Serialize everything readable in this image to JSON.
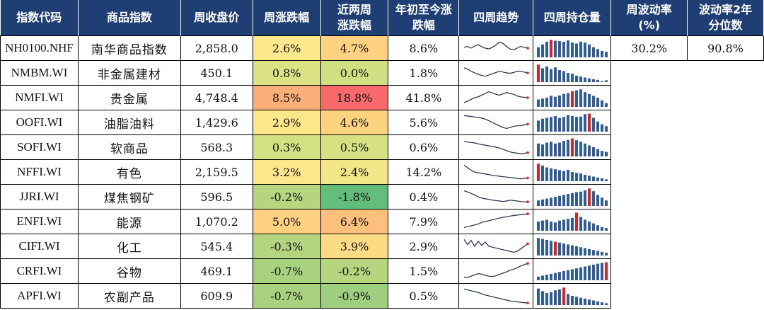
{
  "headers": [
    "指数代码",
    "商品指数",
    "周收盘价",
    "周涨跌幅",
    "近两周\n涨跌幅",
    "年初至今涨\n跌幅",
    "四周趋势",
    "四周持仓量",
    "周波动率\n(%)",
    "波动率2年\n分位数"
  ],
  "colors": {
    "header_bg": "#1f3e73",
    "spark_line": "#1f2a44",
    "spark_end": "#e02020",
    "bar_normal": "#2e5c9e",
    "bar_highlight": "#e02020"
  },
  "rows": [
    {
      "code": "NH0100.NHF",
      "name": "南华商品指数",
      "close": "2,858.0",
      "wk": "2.6%",
      "wk_bg": "#fde98c",
      "two": "4.7%",
      "two_bg": "#fed280",
      "ytd": "8.6%",
      "vol": "30.2%",
      "pct": "90.8%",
      "trend": [
        0.55,
        0.6,
        0.5,
        0.62,
        0.7,
        0.58,
        0.5,
        0.45,
        0.55,
        0.68,
        0.85,
        0.78,
        0.6,
        0.45,
        0.4,
        0.5,
        0.6,
        0.55,
        0.5
      ],
      "oi": [
        0.55,
        0.7,
        0.85,
        0.95,
        0.9,
        0.88,
        0.85,
        0.92,
        0.8,
        0.75,
        0.85,
        0.8,
        0.7,
        0.55,
        0.45,
        0.35,
        0.3
      ],
      "oi_hl": 3
    },
    {
      "code": "NMBM.WI",
      "name": "非金属建材",
      "close": "450.1",
      "wk": "0.8%",
      "wk_bg": "#dbe384",
      "two": "0.0%",
      "two_bg": "#cfe082",
      "ytd": "1.8%",
      "vol": "",
      "pct": "",
      "trend": [
        0.8,
        0.72,
        0.6,
        0.5,
        0.42,
        0.35,
        0.3,
        0.38,
        0.45,
        0.52,
        0.6,
        0.55,
        0.5,
        0.48,
        0.52,
        0.6,
        0.58,
        0.55,
        0.5
      ],
      "oi": [
        0.95,
        0.75,
        0.85,
        0.7,
        0.8,
        0.65,
        0.6,
        0.5,
        0.45,
        0.35,
        0.3,
        0.25,
        0.2,
        0.15,
        0.12,
        0.05,
        0.1
      ],
      "oi_hl": 0
    },
    {
      "code": "NMFI.WI",
      "name": "贵金属",
      "close": "4,748.4",
      "wk": "8.5%",
      "wk_bg": "#fbae77",
      "two": "18.8%",
      "two_bg": "#f8696b",
      "ytd": "41.8%",
      "vol": "",
      "pct": "",
      "trend": [
        0.2,
        0.3,
        0.4,
        0.5,
        0.55,
        0.65,
        0.75,
        0.85,
        0.78,
        0.7,
        0.65,
        0.72,
        0.8,
        0.75,
        0.7,
        0.6,
        0.55,
        0.52,
        0.5
      ],
      "oi": [
        0.4,
        0.45,
        0.5,
        0.6,
        0.55,
        0.62,
        0.7,
        0.75,
        0.85,
        0.9,
        0.95,
        0.8,
        0.7,
        0.6,
        0.5,
        0.35,
        0.2
      ],
      "oi_hl": 8
    },
    {
      "code": "OOFI.WI",
      "name": "油脂油料",
      "close": "1,429.6",
      "wk": "2.9%",
      "wk_bg": "#fde78b",
      "two": "4.6%",
      "two_bg": "#fed380",
      "ytd": "5.6%",
      "vol": "",
      "pct": "",
      "trend": [
        0.9,
        0.88,
        0.85,
        0.82,
        0.8,
        0.75,
        0.7,
        0.6,
        0.5,
        0.4,
        0.3,
        0.2,
        0.15,
        0.2,
        0.28,
        0.3,
        0.32,
        0.35,
        0.4
      ],
      "oi": [
        0.6,
        0.7,
        0.75,
        0.8,
        0.85,
        0.75,
        0.8,
        0.9,
        0.85,
        0.8,
        0.82,
        0.95,
        0.98,
        0.75,
        0.55,
        0.4,
        0.3
      ],
      "oi_hl": 12
    },
    {
      "code": "SOFI.WI",
      "name": "软商品",
      "close": "568.3",
      "wk": "0.3%",
      "wk_bg": "#d4e183",
      "two": "0.5%",
      "two_bg": "#d6e183",
      "ytd": "0.6%",
      "vol": "",
      "pct": "",
      "trend": [
        0.85,
        0.8,
        0.78,
        0.75,
        0.7,
        0.65,
        0.62,
        0.58,
        0.55,
        0.5,
        0.45,
        0.38,
        0.3,
        0.22,
        0.18,
        0.15,
        0.12,
        0.14,
        0.18
      ],
      "oi": [
        0.7,
        0.65,
        0.75,
        0.8,
        0.7,
        0.75,
        0.85,
        0.9,
        0.98,
        0.88,
        0.8,
        0.7,
        0.6,
        0.5,
        0.4,
        0.3,
        0.25
      ],
      "oi_hl": 8
    },
    {
      "code": "NFFI.WI",
      "name": "有色",
      "close": "2,159.5",
      "wk": "3.2%",
      "wk_bg": "#fde68b",
      "two": "2.4%",
      "two_bg": "#f4e789",
      "ytd": "14.2%",
      "vol": "",
      "pct": "",
      "trend": [
        0.9,
        0.75,
        0.6,
        0.5,
        0.45,
        0.42,
        0.38,
        0.35,
        0.3,
        0.28,
        0.25,
        0.22,
        0.2,
        0.18,
        0.15,
        0.12,
        0.1,
        0.12,
        0.15
      ],
      "oi": [
        0.95,
        0.85,
        0.75,
        0.7,
        0.65,
        0.6,
        0.55,
        0.62,
        0.5,
        0.45,
        0.42,
        0.35,
        0.3,
        0.25,
        0.2,
        0.15,
        0.1
      ],
      "oi_hl": 0
    },
    {
      "code": "JJRI.WI",
      "name": "煤焦钢矿",
      "close": "596.5",
      "wk": "-0.2%",
      "wk_bg": "#b5d67f",
      "two": "-1.8%",
      "two_bg": "#63be7b",
      "ytd": "0.4%",
      "vol": "",
      "pct": "",
      "trend": [
        0.85,
        0.78,
        0.7,
        0.6,
        0.5,
        0.42,
        0.38,
        0.35,
        0.3,
        0.28,
        0.25,
        0.22,
        0.25,
        0.3,
        0.28,
        0.25,
        0.22,
        0.2,
        0.2
      ],
      "oi": [
        0.3,
        0.35,
        0.4,
        0.45,
        0.5,
        0.55,
        0.6,
        0.65,
        0.7,
        0.75,
        0.78,
        0.85,
        0.95,
        0.8,
        0.6,
        0.45,
        0.3
      ],
      "oi_hl": 12
    },
    {
      "code": "ENFI.WI",
      "name": "能源",
      "close": "1,070.2",
      "wk": "5.0%",
      "wk_bg": "#fed07f",
      "two": "6.4%",
      "two_bg": "#fdc07c",
      "ytd": "7.9%",
      "vol": "",
      "pct": "",
      "trend": [
        0.15,
        0.2,
        0.25,
        0.3,
        0.35,
        0.45,
        0.5,
        0.55,
        0.6,
        0.65,
        0.7,
        0.75,
        0.78,
        0.82,
        0.85,
        0.88,
        0.9,
        0.92,
        0.95
      ],
      "oi": [
        0.5,
        0.55,
        0.6,
        0.5,
        0.45,
        0.55,
        0.6,
        0.65,
        0.7,
        0.98,
        0.75,
        0.6,
        0.5,
        0.4,
        0.3,
        0.2,
        0.15
      ],
      "oi_hl": 9
    },
    {
      "code": "CIFI.WI",
      "name": "化工",
      "close": "545.4",
      "wk": "-0.3%",
      "wk_bg": "#b3d57f",
      "two": "3.9%",
      "two_bg": "#fddb84",
      "ytd": "2.9%",
      "vol": "",
      "pct": "",
      "trend": [
        0.9,
        0.6,
        0.85,
        0.5,
        0.8,
        0.55,
        0.75,
        0.5,
        0.45,
        0.4,
        0.35,
        0.3,
        0.25,
        0.2,
        0.15,
        0.2,
        0.35,
        0.5,
        0.65
      ],
      "oi": [
        0.95,
        0.9,
        0.85,
        0.8,
        0.75,
        0.7,
        0.65,
        0.6,
        0.55,
        0.5,
        0.45,
        0.4,
        0.35,
        0.3,
        0.25,
        0.2,
        0.15
      ],
      "oi_hl": 4
    },
    {
      "code": "CRFI.WI",
      "name": "谷物",
      "close": "469.1",
      "wk": "-0.7%",
      "wk_bg": "#a9d27e",
      "two": "-0.2%",
      "two_bg": "#b5d67f",
      "ytd": "1.5%",
      "vol": "",
      "pct": "",
      "trend": [
        0.15,
        0.12,
        0.2,
        0.28,
        0.35,
        0.32,
        0.25,
        0.2,
        0.18,
        0.22,
        0.3,
        0.38,
        0.45,
        0.55,
        0.6,
        0.7,
        0.8,
        0.88,
        0.95
      ],
      "oi": [
        0.2,
        0.25,
        0.3,
        0.35,
        0.4,
        0.45,
        0.5,
        0.55,
        0.6,
        0.65,
        0.7,
        0.75,
        0.8,
        0.85,
        0.9,
        0.95,
        0.98
      ],
      "oi_hl": 16
    },
    {
      "code": "APFI.WI",
      "name": "农副产品",
      "close": "609.9",
      "wk": "-0.7%",
      "wk_bg": "#a9d27e",
      "two": "-0.9%",
      "two_bg": "#9dcf7e",
      "ytd": "0.5%",
      "vol": "",
      "pct": "",
      "trend": [
        0.9,
        0.85,
        0.8,
        0.75,
        0.7,
        0.62,
        0.55,
        0.5,
        0.45,
        0.4,
        0.35,
        0.3,
        0.25,
        0.2,
        0.18,
        0.15,
        0.12,
        0.1,
        0.08
      ],
      "oi": [
        0.9,
        0.75,
        0.65,
        0.7,
        0.8,
        0.85,
        0.95,
        0.6,
        0.5,
        0.45,
        0.4,
        0.35,
        0.3,
        0.25,
        0.2,
        0.15,
        0.1
      ],
      "oi_hl": 6
    }
  ]
}
